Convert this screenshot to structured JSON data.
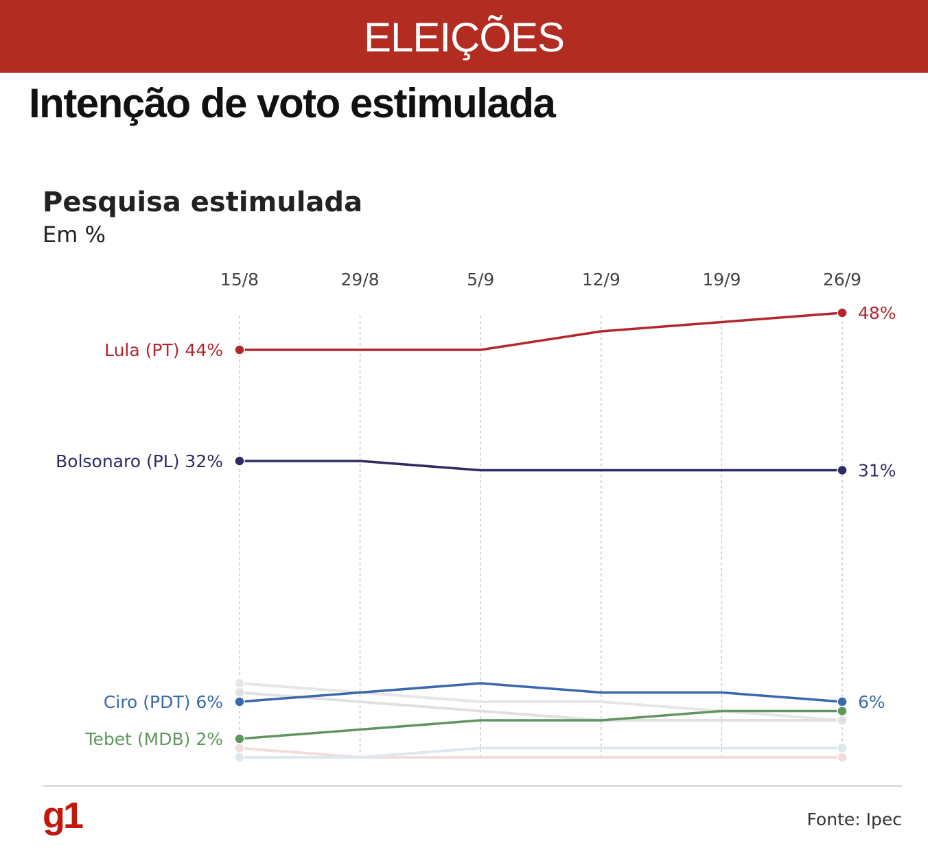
{
  "header": {
    "banner": "ELEIÇÕES",
    "title": "Intenção de voto estimulada",
    "logo": "g1",
    "source": "Fonte: Ipec"
  },
  "chart_data": {
    "type": "line",
    "title": "Pesquisa estimulada",
    "subtitle": "Em %",
    "categories": [
      "15/8",
      "29/8",
      "5/9",
      "12/9",
      "19/9",
      "26/9"
    ],
    "grid": "vertical dashed",
    "ylim": [
      0,
      48
    ],
    "series": [
      {
        "name": "Lula (PT)",
        "start_label": "Lula (PT) 44%",
        "end_label": "48%",
        "color": "#b3262c",
        "values": [
          44,
          44,
          44,
          46,
          47,
          48
        ]
      },
      {
        "name": "Bolsonaro (PL)",
        "start_label": "Bolsonaro (PL) 32%",
        "end_label": "31%",
        "color": "#2e2b64",
        "values": [
          32,
          32,
          31,
          31,
          31,
          31
        ]
      },
      {
        "name": "Ciro (PDT)",
        "start_label": "Ciro (PDT) 6%",
        "end_label": "6%",
        "color": "#3968ab",
        "values": [
          6,
          7,
          8,
          7,
          7,
          6
        ]
      },
      {
        "name": "Tebet (MDB)",
        "start_label": "Tebet (MDB) 2%",
        "end_label": "",
        "color": "#5f965d",
        "values": [
          2,
          3,
          4,
          4,
          5,
          5
        ]
      },
      {
        "color": "#e6e6e6",
        "values": [
          8,
          7,
          6,
          6,
          5,
          4
        ],
        "faded": true
      },
      {
        "color": "#e0e0e0",
        "values": [
          7,
          6,
          5,
          4,
          4,
          4
        ],
        "faded": true
      },
      {
        "color": "#f2dcdc",
        "values": [
          1,
          0,
          0,
          0,
          0,
          0
        ],
        "faded": true
      },
      {
        "color": "#dde8ee",
        "values": [
          0,
          0,
          1,
          1,
          1,
          1
        ],
        "faded": true
      }
    ]
  }
}
